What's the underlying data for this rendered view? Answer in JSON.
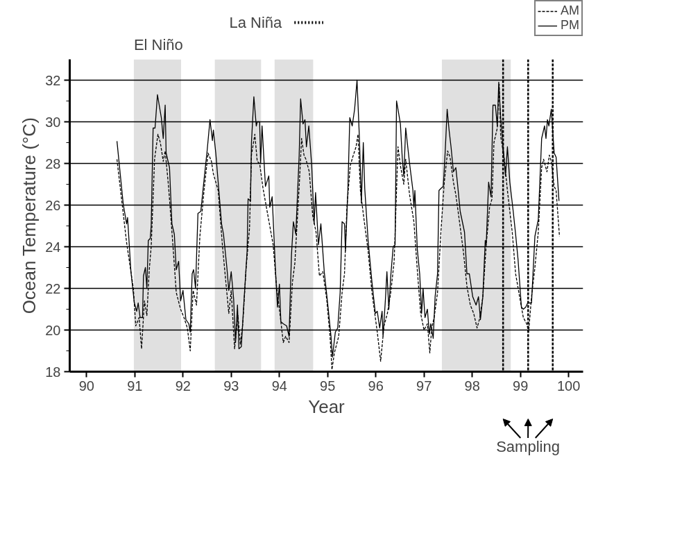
{
  "chart_data": {
    "type": "line",
    "xlabel": "Year",
    "ylabel": "Ocean Temperature (°C)",
    "xlim": [
      89.65,
      100.3
    ],
    "ylim": [
      18,
      33
    ],
    "xticks": [
      90,
      91,
      92,
      93,
      94,
      95,
      96,
      97,
      98,
      99,
      {
        "value": 100,
        "label": "100"
      }
    ],
    "yticks": [
      18,
      {
        "value": 19,
        "label": null
      },
      20,
      {
        "value": 21,
        "label": null
      },
      22,
      {
        "value": 23,
        "label": null
      },
      24,
      {
        "value": 25,
        "label": null
      },
      26,
      {
        "value": 27,
        "label": null
      },
      28,
      {
        "value": 29,
        "label": null
      },
      30,
      {
        "value": 31,
        "label": null
      },
      32
    ],
    "grid": "y",
    "legend": "top right",
    "marker": "none",
    "series": [
      {
        "name": "AM",
        "color": "#000000",
        "line_style": "dashed",
        "x": [
          90.63,
          90.76,
          90.83,
          90.97,
          91.02,
          91.09,
          91.14,
          91.2,
          91.25,
          91.3,
          91.34,
          91.41,
          91.48,
          91.53,
          91.59,
          91.63,
          91.7,
          91.79,
          91.86,
          91.95,
          92.02,
          92.09,
          92.15,
          92.21,
          92.28,
          92.35,
          92.44,
          92.52,
          92.59,
          92.63,
          92.73,
          92.82,
          92.95,
          93.0,
          93.07,
          93.14,
          93.19,
          93.24,
          93.31,
          93.38,
          93.42,
          93.49,
          93.54,
          93.59,
          93.66,
          93.73,
          93.8,
          93.87,
          93.94,
          94.01,
          94.08,
          94.13,
          94.2,
          94.27,
          94.32,
          94.41,
          94.46,
          94.51,
          94.55,
          94.62,
          94.69,
          94.76,
          94.83,
          94.9,
          94.98,
          95.05,
          95.09,
          95.14,
          95.23,
          95.3,
          95.35,
          95.4,
          95.47,
          95.52,
          95.59,
          95.63,
          95.68,
          95.75,
          95.84,
          95.92,
          96.03,
          96.1,
          96.17,
          96.24,
          96.31,
          96.38,
          96.46,
          96.51,
          96.58,
          96.62,
          96.7,
          96.79,
          96.86,
          96.93,
          97.0,
          97.07,
          97.12,
          97.16,
          97.21,
          97.28,
          97.35,
          97.42,
          97.49,
          97.54,
          97.61,
          97.66,
          97.73,
          97.82,
          97.89,
          97.96,
          98.03,
          98.1,
          98.16,
          98.22,
          98.29,
          98.36,
          98.41,
          98.45,
          98.52,
          98.56,
          98.59,
          98.66,
          98.73,
          98.83,
          98.9,
          98.99,
          99.06,
          99.13,
          99.17,
          99.23,
          99.3,
          99.37,
          99.44,
          99.48,
          99.55,
          99.6,
          99.64,
          99.7,
          99.74,
          99.81
        ],
        "values": [
          28.2,
          25.6,
          24.2,
          22.0,
          20.2,
          20.6,
          19.1,
          21.4,
          20.7,
          22.9,
          24.0,
          28.2,
          29.4,
          29.0,
          28.1,
          28.6,
          26.9,
          24.1,
          21.8,
          21.0,
          20.6,
          20.1,
          19.0,
          21.9,
          21.2,
          24.5,
          26.8,
          28.5,
          28.1,
          27.5,
          26.7,
          24.0,
          20.8,
          21.9,
          19.1,
          20.7,
          19.3,
          20.3,
          23.0,
          24.9,
          28.4,
          29.4,
          28.1,
          28.0,
          26.8,
          25.9,
          25.0,
          24.1,
          22.1,
          20.8,
          19.4,
          19.7,
          19.4,
          22.3,
          23.2,
          26.9,
          29.2,
          28.4,
          28.2,
          27.6,
          25.5,
          24.7,
          22.6,
          22.8,
          21.5,
          19.7,
          18.1,
          18.9,
          19.7,
          21.8,
          22.7,
          25.9,
          27.9,
          28.3,
          28.8,
          29.4,
          26.7,
          25.4,
          23.8,
          21.8,
          19.9,
          18.5,
          20.2,
          20.8,
          21.8,
          23.3,
          28.8,
          27.9,
          27.0,
          28.2,
          26.5,
          25.2,
          22.9,
          20.8,
          20.0,
          20.3,
          18.9,
          20.1,
          20.6,
          21.8,
          24.7,
          27.1,
          28.6,
          28.3,
          27.1,
          26.5,
          25.3,
          23.7,
          22.1,
          21.2,
          20.8,
          20.1,
          20.6,
          21.6,
          24.1,
          25.9,
          26.3,
          29.0,
          29.7,
          31.8,
          29.3,
          28.3,
          26.7,
          24.7,
          22.7,
          21.5,
          20.6,
          20.3,
          19.9,
          21.6,
          23.0,
          24.7,
          27.8,
          28.2,
          27.6,
          28.4,
          28.1,
          26.9,
          26.7,
          24.5
        ]
      },
      {
        "name": "PM",
        "color": "#000000",
        "line_style": "solid",
        "x": [
          90.63,
          90.76,
          90.83,
          90.85,
          90.92,
          90.99,
          91.04,
          91.07,
          91.11,
          91.16,
          91.18,
          91.22,
          91.25,
          91.28,
          91.32,
          91.34,
          91.38,
          91.42,
          91.47,
          91.55,
          91.59,
          91.63,
          91.65,
          91.72,
          91.77,
          91.82,
          91.86,
          91.91,
          91.95,
          92.0,
          92.06,
          92.12,
          92.15,
          92.19,
          92.22,
          92.26,
          92.31,
          92.37,
          92.44,
          92.5,
          92.56,
          92.61,
          92.63,
          92.68,
          92.8,
          92.84,
          92.91,
          92.95,
          93.0,
          93.05,
          93.09,
          93.13,
          93.16,
          93.21,
          93.26,
          93.33,
          93.35,
          93.4,
          93.42,
          93.47,
          93.52,
          93.54,
          93.59,
          93.61,
          93.64,
          93.71,
          93.78,
          93.8,
          93.85,
          93.92,
          93.96,
          94.0,
          94.03,
          94.08,
          94.15,
          94.2,
          94.25,
          94.29,
          94.34,
          94.41,
          94.44,
          94.49,
          94.53,
          94.56,
          94.61,
          94.67,
          94.72,
          94.75,
          94.81,
          94.86,
          94.93,
          95.0,
          95.07,
          95.1,
          95.16,
          95.21,
          95.26,
          95.3,
          95.35,
          95.37,
          95.42,
          95.46,
          95.51,
          95.56,
          95.61,
          95.66,
          95.7,
          95.74,
          95.77,
          95.84,
          95.92,
          95.99,
          96.03,
          96.08,
          96.13,
          96.15,
          96.2,
          96.23,
          96.27,
          96.31,
          96.36,
          96.4,
          96.43,
          96.46,
          96.51,
          96.55,
          96.58,
          96.62,
          96.7,
          96.77,
          96.79,
          96.81,
          96.86,
          96.91,
          96.95,
          96.98,
          97.02,
          97.07,
          97.11,
          97.14,
          97.19,
          97.23,
          97.28,
          97.31,
          97.35,
          97.4,
          97.44,
          97.48,
          97.52,
          97.56,
          97.61,
          97.66,
          97.7,
          97.75,
          97.84,
          97.89,
          97.94,
          98.01,
          98.08,
          98.13,
          98.17,
          98.22,
          98.27,
          98.29,
          98.34,
          98.39,
          98.43,
          98.48,
          98.52,
          98.55,
          98.59,
          98.64,
          98.69,
          98.73,
          98.78,
          98.85,
          98.9,
          98.95,
          99.02,
          99.06,
          99.11,
          99.15,
          99.23,
          99.3,
          99.37,
          99.44,
          99.5,
          99.53,
          99.56,
          99.59,
          99.64,
          99.7,
          99.74,
          99.8
        ],
        "values": [
          29.07,
          26.05,
          25.1,
          25.4,
          22.8,
          21.3,
          20.9,
          21.3,
          20.6,
          20.6,
          22.6,
          23.0,
          22.0,
          24.3,
          24.4,
          25.0,
          29.7,
          29.7,
          31.3,
          30.2,
          29.2,
          30.8,
          28.5,
          27.8,
          25.1,
          24.6,
          22.9,
          23.3,
          21.4,
          21.9,
          20.5,
          20.3,
          19.9,
          22.7,
          22.9,
          22.0,
          25.6,
          25.7,
          27.3,
          28.6,
          30.1,
          29.1,
          29.6,
          28.5,
          25.1,
          24.6,
          23.0,
          21.9,
          22.8,
          21.5,
          19.4,
          21.2,
          19.1,
          19.2,
          21.2,
          23.8,
          26.3,
          26.2,
          29.0,
          31.2,
          29.8,
          30.0,
          30.0,
          28.0,
          29.8,
          26.9,
          27.4,
          25.9,
          26.4,
          22.8,
          21.1,
          22.2,
          20.4,
          20.3,
          20.2,
          19.7,
          23.6,
          25.2,
          24.6,
          28.4,
          31.1,
          29.9,
          30.1,
          28.8,
          29.8,
          27.9,
          25.1,
          26.6,
          24.1,
          25.1,
          22.8,
          21.3,
          19.7,
          18.7,
          19.9,
          20.1,
          21.8,
          25.2,
          25.1,
          23.8,
          26.7,
          30.2,
          29.8,
          30.6,
          32.0,
          29.2,
          26.1,
          29.0,
          26.8,
          24.3,
          22.3,
          20.8,
          20.9,
          20.1,
          20.9,
          19.7,
          21.5,
          22.8,
          21.0,
          22.6,
          24.0,
          24.1,
          31.0,
          30.6,
          29.9,
          28.2,
          27.4,
          29.7,
          28.0,
          26.7,
          25.9,
          26.7,
          23.9,
          22.7,
          20.8,
          22.0,
          20.6,
          21.0,
          19.8,
          20.3,
          19.6,
          21.6,
          22.7,
          26.7,
          26.8,
          26.9,
          28.6,
          30.6,
          29.6,
          28.8,
          27.6,
          27.8,
          26.9,
          25.7,
          24.7,
          22.7,
          22.7,
          21.6,
          21.2,
          21.6,
          20.5,
          21.6,
          24.3,
          24.1,
          27.1,
          26.4,
          30.8,
          30.8,
          29.8,
          31.9,
          30.2,
          28.8,
          27.4,
          28.8,
          27.1,
          25.7,
          24.6,
          23.4,
          21.1,
          21.0,
          21.1,
          21.3,
          21.3,
          24.5,
          25.3,
          29.2,
          29.8,
          29.2,
          30.1,
          29.8,
          30.6,
          28.5,
          28.3,
          26.2
        ]
      }
    ],
    "ref_lines": [
      {
        "axis": "x",
        "value": 98.64,
        "label": null,
        "line_style": "dashed",
        "color": "#000000"
      },
      {
        "axis": "x",
        "value": 99.16,
        "label": null,
        "line_style": "dashed",
        "color": "#000000"
      },
      {
        "axis": "x",
        "value": 99.67,
        "label": null,
        "line_style": "dashed",
        "color": "#000000"
      }
    ],
    "bands": [
      {
        "axis": "x",
        "from": 90.98,
        "to": 91.96,
        "color": "#000000"
      },
      {
        "axis": "x",
        "from": 92.66,
        "to": 93.62,
        "color": "#000000"
      },
      {
        "axis": "x",
        "from": 93.9,
        "to": 94.7,
        "color": "#000000"
      },
      {
        "axis": "x",
        "from": 97.37,
        "to": 98.8,
        "color": "#000000"
      }
    ],
    "annotations": [
      "El Niño",
      "La Niña",
      "Sampling"
    ]
  }
}
